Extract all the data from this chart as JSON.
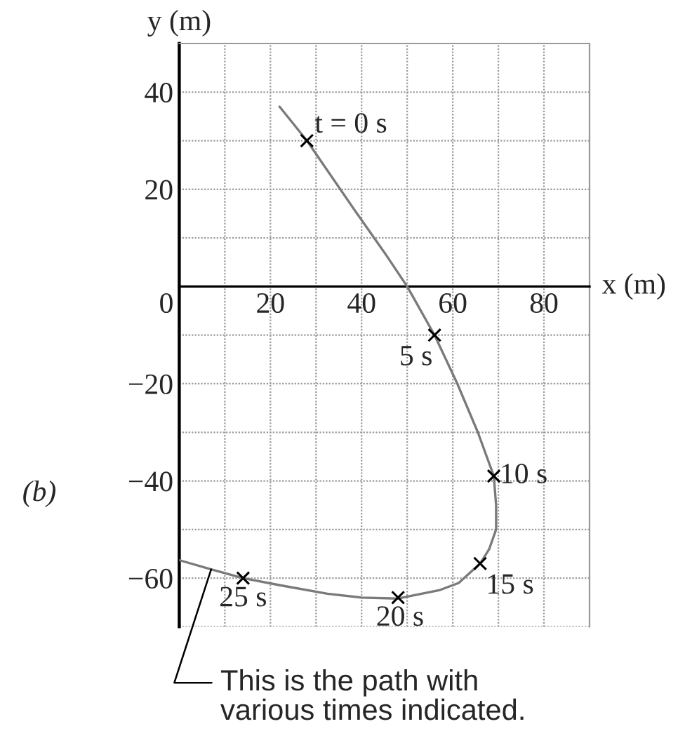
{
  "chart_data": {
    "type": "line",
    "xlabel": "x (m)",
    "ylabel": "y (m)",
    "xlim": [
      0,
      90
    ],
    "ylim": [
      -70,
      50
    ],
    "xticks": [
      0,
      {
        "value": 10,
        "label": null
      },
      20,
      {
        "value": 30,
        "label": null
      },
      40,
      {
        "value": 50,
        "label": null
      },
      60,
      {
        "value": 70,
        "label": null
      },
      80,
      {
        "value": 90,
        "label": null
      }
    ],
    "yticks": [
      {
        "value": -70,
        "label": null
      },
      -60,
      {
        "value": -50,
        "label": null
      },
      -40,
      {
        "value": -30,
        "label": null
      },
      -20,
      {
        "value": -10,
        "label": null
      },
      {
        "value": 0,
        "label": null
      },
      {
        "value": 10,
        "label": null
      },
      20,
      {
        "value": 30,
        "label": null
      },
      40,
      {
        "value": 50,
        "label": null
      }
    ],
    "grid": true,
    "series": [
      {
        "color": "#7a7a7a",
        "line_style": "solid",
        "x": [
          22,
          28,
          39,
          45,
          50,
          56,
          61,
          65.5,
          69,
          69.5,
          69.5,
          68,
          66,
          61.3,
          57,
          48,
          40,
          32.5,
          22.3,
          14,
          7,
          0
        ],
        "values": [
          37,
          30,
          15,
          7,
          0,
          -10,
          -20,
          -30,
          -39,
          -45,
          -50,
          -54,
          -57,
          -61,
          -62.5,
          -64.2,
          -64,
          -63.2,
          -61.5,
          -60,
          -58.2,
          -56.3
        ]
      },
      {
        "type": "scatter",
        "color": "#000000",
        "marker": "cross",
        "x": [
          28,
          56,
          69,
          66,
          48,
          14
        ],
        "values": [
          30,
          -10,
          -39,
          -57,
          -64,
          -60
        ]
      }
    ],
    "annotations": [
      "(b)",
      {
        "text": "t = 0 s",
        "x": 28,
        "y": 30
      },
      {
        "text": "5 s",
        "x": 56,
        "y": -10
      },
      {
        "text": "10 s",
        "x": 69,
        "y": -39
      },
      {
        "text": "15 s",
        "x": 66,
        "y": -57
      },
      {
        "text": "20 s",
        "x": 48,
        "y": -64
      },
      {
        "text": "25 s",
        "x": 14,
        "y": -60
      },
      {
        "text": "This is the path with\nvarious times indicated.",
        "x": 7,
        "y": -58.2
      }
    ]
  }
}
